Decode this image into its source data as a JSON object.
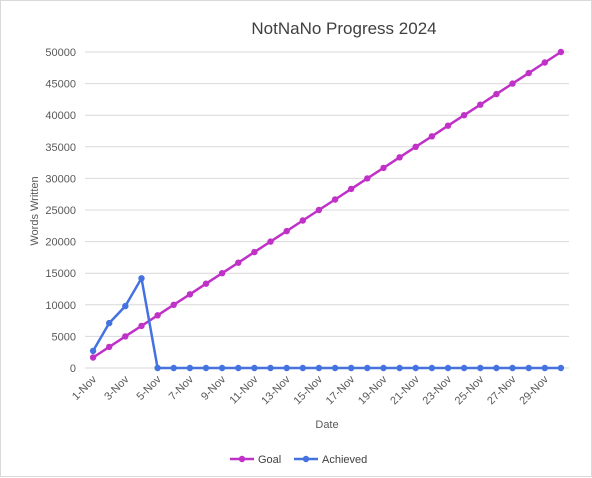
{
  "chart_data": {
    "type": "line",
    "title": "NotNaNo Progress 2024",
    "xlabel": "Date",
    "ylabel": "Words Written",
    "ylim": [
      0,
      50000
    ],
    "yticks": [
      0,
      5000,
      10000,
      15000,
      20000,
      25000,
      30000,
      35000,
      40000,
      45000,
      50000
    ],
    "grid": true,
    "legend_position": "bottom",
    "x": [
      "1-Nov",
      "2-Nov",
      "3-Nov",
      "4-Nov",
      "5-Nov",
      "6-Nov",
      "7-Nov",
      "8-Nov",
      "9-Nov",
      "10-Nov",
      "11-Nov",
      "12-Nov",
      "13-Nov",
      "14-Nov",
      "15-Nov",
      "16-Nov",
      "17-Nov",
      "18-Nov",
      "19-Nov",
      "20-Nov",
      "21-Nov",
      "22-Nov",
      "23-Nov",
      "24-Nov",
      "25-Nov",
      "26-Nov",
      "27-Nov",
      "28-Nov",
      "29-Nov",
      "30-Nov"
    ],
    "xtick_labels": [
      "1-Nov",
      "3-Nov",
      "5-Nov",
      "7-Nov",
      "9-Nov",
      "11-Nov",
      "13-Nov",
      "15-Nov",
      "17-Nov",
      "19-Nov",
      "21-Nov",
      "23-Nov",
      "25-Nov",
      "27-Nov",
      "29-Nov"
    ],
    "series": [
      {
        "name": "Goal",
        "color": "#c031c7",
        "values": [
          1667,
          3333,
          5000,
          6667,
          8333,
          10000,
          11667,
          13333,
          15000,
          16667,
          18333,
          20000,
          21667,
          23333,
          25000,
          26667,
          28333,
          30000,
          31667,
          33333,
          35000,
          36667,
          38333,
          40000,
          41667,
          43333,
          45000,
          46667,
          48333,
          50000
        ]
      },
      {
        "name": "Achieved",
        "color": "#4472e0",
        "values": [
          2700,
          7100,
          9800,
          14200,
          0,
          0,
          0,
          0,
          0,
          0,
          0,
          0,
          0,
          0,
          0,
          0,
          0,
          0,
          0,
          0,
          0,
          0,
          0,
          0,
          0,
          0,
          0,
          0,
          0,
          0
        ]
      }
    ]
  }
}
